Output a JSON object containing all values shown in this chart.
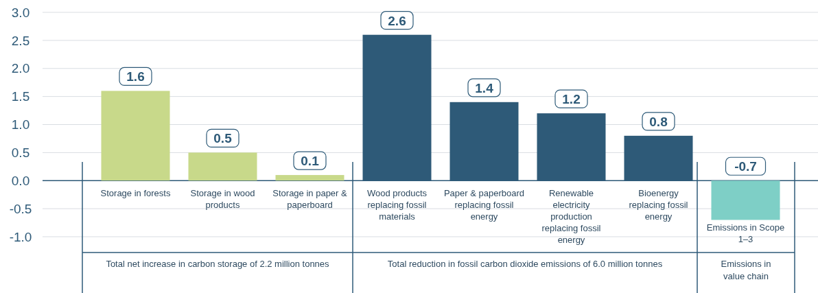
{
  "chart_data": {
    "type": "bar",
    "categories": [
      "Storage in forests",
      "Storage in wood products",
      "Storage in paper & paperboard",
      "Wood products replacing fossil materials",
      "Paper & paperboard replacing fossil energy",
      "Renewable electricity production replacing fossil energy",
      "Bioenergy replacing fossil energy",
      "Emissions in Scope 1–3"
    ],
    "values": [
      1.6,
      0.5,
      0.1,
      2.6,
      1.4,
      1.2,
      0.8,
      -0.7
    ],
    "colors": [
      "#c8d98a",
      "#c8d98a",
      "#c8d98a",
      "#2e5a78",
      "#2e5a78",
      "#2e5a78",
      "#2e5a78",
      "#7ecfc6"
    ],
    "ylim": [
      -1.0,
      3.0
    ],
    "yticks": [
      {
        "value": -1.0,
        "label": "-1.0"
      },
      -0.5,
      {
        "value": 0.0,
        "label": "0.0"
      },
      0.5,
      {
        "value": 1.0,
        "label": "1.0"
      },
      1.5,
      {
        "value": 2.0,
        "label": "2.0"
      },
      2.5,
      {
        "value": 3.0,
        "label": "3.0"
      }
    ],
    "grid": "y",
    "ref_lines": [
      {
        "axis": "y",
        "value": 0,
        "color": "#2e5a78"
      }
    ],
    "data_labels": true,
    "annotations": [
      "Total net increase in carbon storage of 2.2 million tonnes",
      "Total reduction in fossil carbon dioxide emissions of 6.0 million tonnes",
      "Emissions in value chain"
    ]
  }
}
